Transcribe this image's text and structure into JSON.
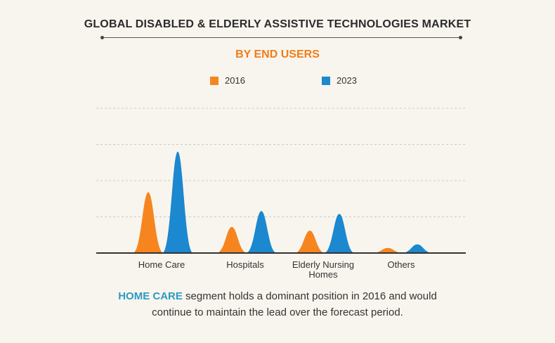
{
  "title": "GLOBAL DISABLED & ELDERLY ASSISTIVE TECHNOLOGIES MARKET",
  "subtitle": "BY END USERS",
  "colors": {
    "s2016": "#f7851f",
    "s2023": "#1b88cf",
    "highlight": "#2a9bc4",
    "accent": "#f07d1a"
  },
  "footer": {
    "highlight": "HOME CARE",
    "line1": " segment holds a dominant position in 2016 and would",
    "line2": "continue to maintain the lead over the forecast period."
  },
  "chart_data": {
    "type": "area",
    "categories": [
      "Home Care",
      "Hospitals",
      "Elderly Nursing Homes",
      "Others"
    ],
    "category_label_lines": [
      [
        "Home Care"
      ],
      [
        "Hospitals"
      ],
      [
        "Elderly Nursing",
        "Homes"
      ],
      [
        "Others"
      ]
    ],
    "series": [
      {
        "name": "2016",
        "values": [
          84,
          36,
          31,
          7
        ]
      },
      {
        "name": "2023",
        "values": [
          140,
          58,
          54,
          12
        ]
      }
    ],
    "ylim": [
      0,
      200
    ],
    "grid": true,
    "legend_position": "top-center",
    "xlabel": "",
    "ylabel": ""
  }
}
